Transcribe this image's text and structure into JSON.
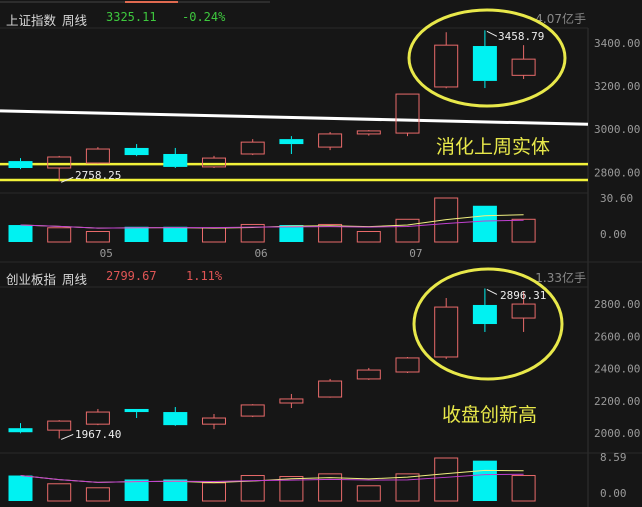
{
  "colors": {
    "up": "#e86a6a",
    "down": "#00f2f2",
    "ma_price": "#ffffff",
    "support": "#f2f23a",
    "vol_ma5": "#f0f080",
    "vol_ma10": "#c040d0",
    "annotation": "#e8e84a"
  },
  "top": {
    "title": "上证指数",
    "period": "周线",
    "last": "3325.11",
    "change": "-0.24%",
    "volume": "4.07亿手",
    "value_color": "#3ec83e",
    "price_axis": {
      "ticks": [
        "3400.00",
        "3200.00",
        "3000.00",
        "2800.00"
      ],
      "range": [
        2700,
        3500
      ]
    },
    "vol_axis": {
      "ticks": [
        "30.60",
        "0.00"
      ],
      "max": 30.6
    },
    "candles": [
      [
        2852,
        2866,
        2815,
        2820
      ],
      [
        2820,
        2876,
        2758.25,
        2871
      ],
      [
        2843,
        2917,
        2840,
        2908
      ],
      [
        2913,
        2931,
        2875,
        2880
      ],
      [
        2885,
        2913,
        2820,
        2825
      ],
      [
        2825,
        2876,
        2820,
        2866
      ],
      [
        2885,
        2954,
        2880,
        2940
      ],
      [
        2954,
        2968,
        2885,
        2931
      ],
      [
        2917,
        2987,
        2903,
        2978
      ],
      [
        2978,
        2996,
        2970,
        2992
      ],
      [
        2982,
        3163,
        2968,
        3163
      ],
      [
        3196,
        3450,
        3190,
        3390
      ],
      [
        3386,
        3458.79,
        3191,
        3224
      ],
      [
        3250,
        3390,
        3233,
        3325.11
      ]
    ],
    "volumes": [
      11.8,
      9.9,
      7.3,
      10.6,
      10.6,
      9.9,
      12.2,
      11.8,
      12.2,
      7.3,
      15.8,
      30.6,
      25.2,
      15.8
    ],
    "ma_line": [
      3085,
      3023
    ],
    "support_lines": [
      2838,
      2764
    ],
    "low_label": "2758.25",
    "high_label": "3458.79",
    "annotation": "消化上周实体",
    "x_labels": [
      {
        "label": "05",
        "at": 2.2
      },
      {
        "label": "06",
        "at": 6.2
      },
      {
        "label": "07",
        "at": 10.2
      }
    ]
  },
  "bottom": {
    "title": "创业板指",
    "period": "周线",
    "last": "2799.67",
    "change": "1.11%",
    "volume": "1.33亿手",
    "value_color": "#e05555",
    "price_axis": {
      "ticks": [
        "2800.00",
        "2600.00",
        "2400.00",
        "2200.00",
        "2000.00"
      ],
      "range": [
        1950,
        2900
      ]
    },
    "vol_axis": {
      "ticks": [
        "8.59",
        "0.00"
      ],
      "max": 8.59
    },
    "candles": [
      [
        2031,
        2062,
        2000,
        2006
      ],
      [
        2019,
        2081,
        1967.4,
        2075
      ],
      [
        2056,
        2150,
        2050,
        2131
      ],
      [
        2150,
        2150,
        2094,
        2131
      ],
      [
        2131,
        2162,
        2045,
        2050
      ],
      [
        2056,
        2119,
        2025,
        2094
      ],
      [
        2106,
        2180,
        2100,
        2175
      ],
      [
        2187,
        2243,
        2156,
        2212
      ],
      [
        2224,
        2336,
        2220,
        2323
      ],
      [
        2336,
        2404,
        2330,
        2391
      ],
      [
        2379,
        2472,
        2373,
        2466
      ],
      [
        2472,
        2837,
        2460,
        2781
      ],
      [
        2794,
        2896.31,
        2627,
        2676
      ],
      [
        2713,
        2874,
        2627,
        2799.67
      ]
    ],
    "volumes": [
      5.09,
      3.44,
      2.64,
      4.3,
      4.3,
      3.63,
      5.09,
      4.89,
      5.42,
      3.04,
      5.42,
      8.59,
      8.06,
      5.09
    ],
    "low_label": "1967.40",
    "high_label": "2896.31",
    "annotation": "收盘创新高"
  }
}
